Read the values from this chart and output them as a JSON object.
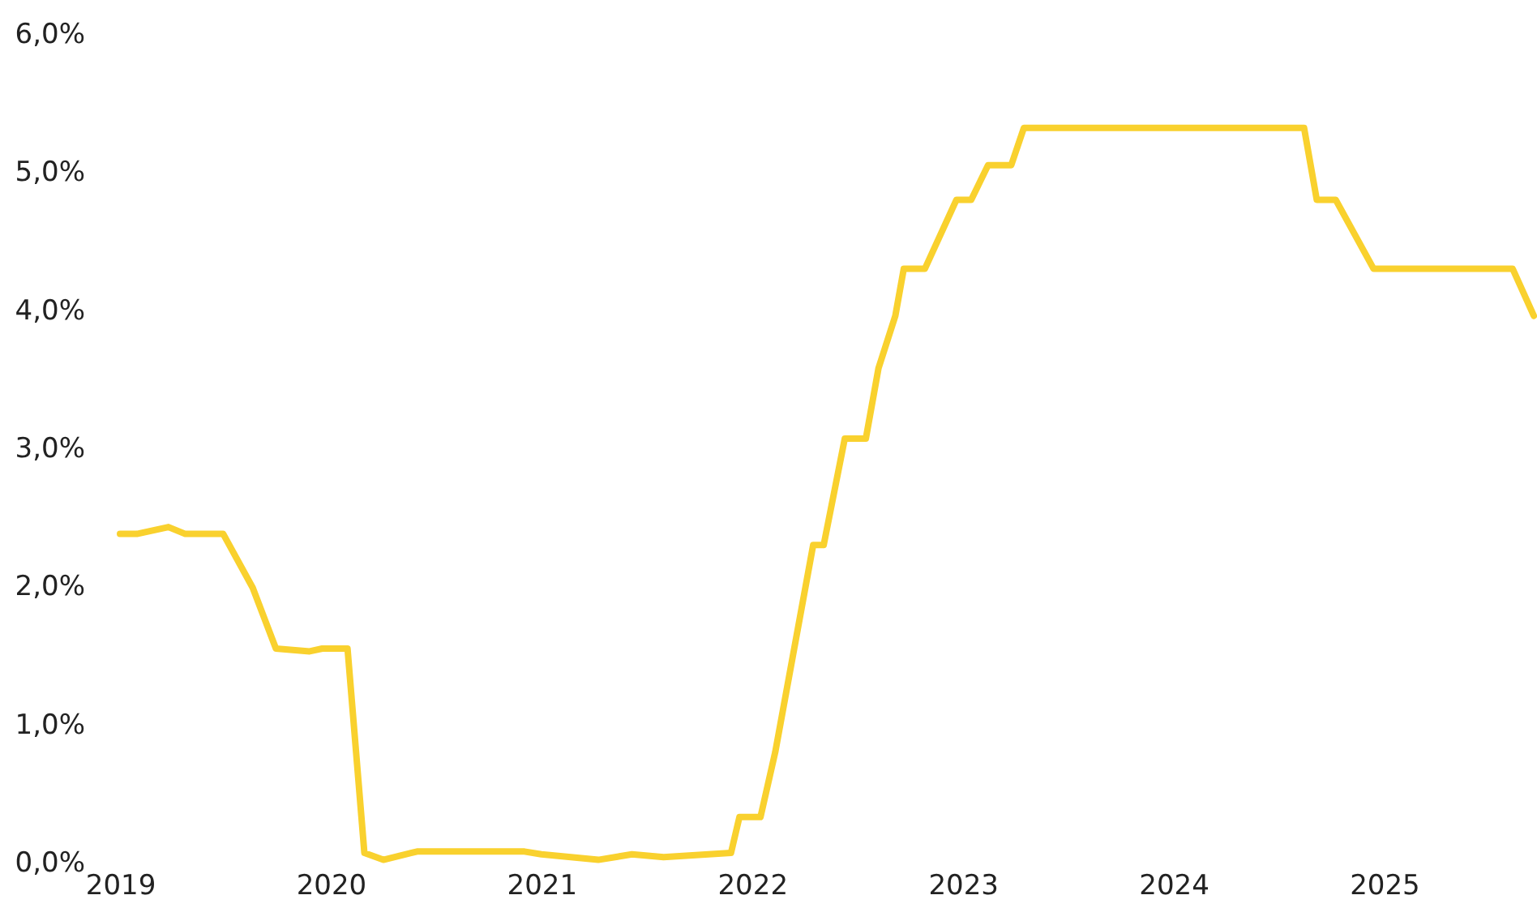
{
  "chart_data": {
    "type": "line",
    "x": [
      2019,
      2019.08,
      2019.23,
      2019.31,
      2019.49,
      2019.63,
      2019.74,
      2019.9,
      2019.96,
      2020.08,
      2020.16,
      2020.25,
      2020.41,
      2020.92,
      2021.0,
      2021.27,
      2021.43,
      2021.58,
      2021.9,
      2021.94,
      2022.04,
      2022.11,
      2022.29,
      2022.34,
      2022.44,
      2022.54,
      2022.6,
      2022.68,
      2022.72,
      2022.82,
      2022.97,
      2023.04,
      2023.12,
      2023.23,
      2023.29,
      2024.62,
      2024.68,
      2024.77,
      2024.95,
      2025.61,
      2025.71
    ],
    "series": [
      {
        "color": "#f9d12e",
        "values": [
          2.38,
          2.38,
          2.43,
          2.38,
          2.38,
          1.99,
          1.55,
          1.53,
          1.55,
          1.55,
          0.07,
          0.02,
          0.08,
          0.08,
          0.06,
          0.02,
          0.06,
          0.04,
          0.07,
          0.33,
          0.33,
          0.8,
          2.3,
          2.3,
          3.07,
          3.07,
          3.58,
          3.96,
          4.3,
          4.3,
          4.8,
          4.8,
          5.05,
          5.05,
          5.32,
          5.32,
          4.8,
          4.8,
          4.3,
          4.3,
          3.96
        ]
      }
    ],
    "xlim": [
      2019,
      2025.71
    ],
    "xticks": [
      2019,
      2020,
      2021,
      2022,
      2023,
      2024,
      2025
    ],
    "ylim": [
      0,
      6
    ],
    "yticks": [
      {
        "value": 0,
        "label": "0,0%"
      },
      {
        "value": 1,
        "label": "1,0%"
      },
      {
        "value": 2,
        "label": "2,0%"
      },
      {
        "value": 3,
        "label": "3,0%"
      },
      {
        "value": 4,
        "label": "4,0%"
      },
      {
        "value": 5,
        "label": "5,0%"
      },
      {
        "value": 6,
        "label": "6,0%"
      }
    ],
    "grid": false,
    "marker": "none",
    "line_style": "solid"
  }
}
